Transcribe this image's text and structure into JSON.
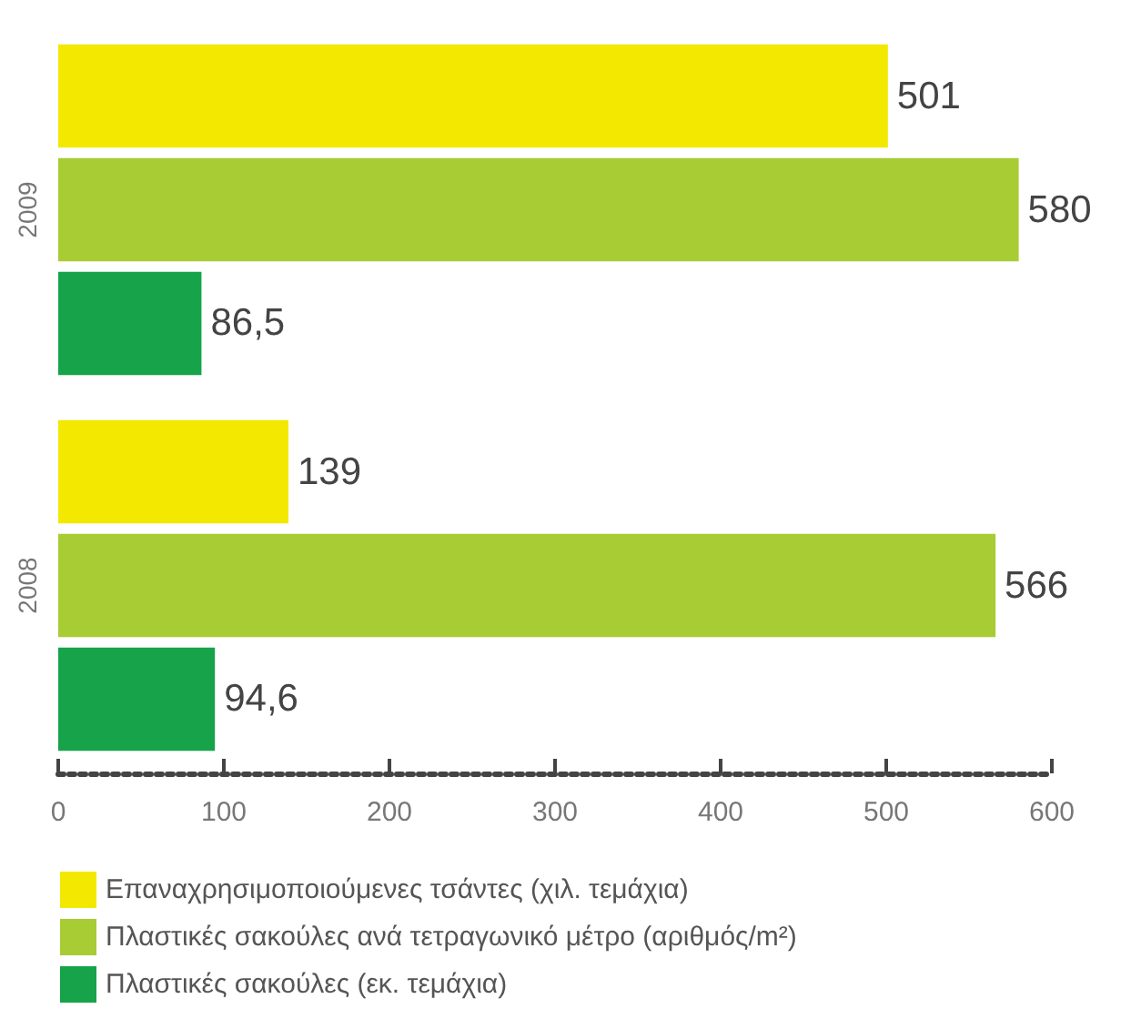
{
  "chart_data": {
    "type": "bar",
    "orientation": "horizontal",
    "categories": [
      "2009",
      "2008"
    ],
    "series": [
      {
        "name": "Επαναχρησιμοποιούμενες τσάντες (χιλ. τεμάχια)",
        "color": "#f2e800",
        "values": [
          501,
          139
        ],
        "value_labels": [
          "501",
          "139"
        ]
      },
      {
        "name": "Πλαστικές σακούλες ανά τετραγωνικό μέτρο (αριθμός/m²)",
        "color": "#a8cc34",
        "values": [
          580,
          566
        ],
        "value_labels": [
          "580",
          "566"
        ]
      },
      {
        "name": "Πλαστικές σακούλες (εκ. τεμάχια)",
        "color": "#16a34a",
        "values": [
          86.5,
          94.6
        ],
        "value_labels": [
          "86,5",
          "94,6"
        ]
      }
    ],
    "xlim": [
      0,
      600
    ],
    "xticks": [
      0,
      100,
      200,
      300,
      400,
      500,
      600
    ],
    "grid": false,
    "legend": "bottom left"
  }
}
